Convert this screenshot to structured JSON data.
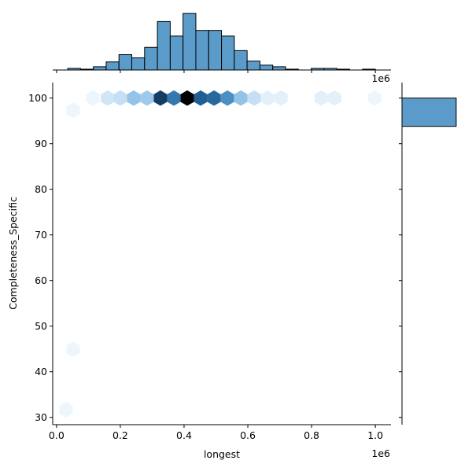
{
  "chart_data": [
    {
      "type": "hexbin",
      "xlabel": "longest",
      "ylabel": "Completeness_Specific",
      "x_offset_text": "1e6",
      "xlim": [
        -0.012,
        1.049
      ],
      "ylim": [
        28.4,
        103.4
      ],
      "xticks": [
        {
          "value": 0.0,
          "label": "0.0"
        },
        {
          "value": 0.2,
          "label": "0.2"
        },
        {
          "value": 0.4,
          "label": "0.4"
        },
        {
          "value": 0.6,
          "label": "0.6"
        },
        {
          "value": 0.8,
          "label": "0.8"
        },
        {
          "value": 1.0,
          "label": "1.0"
        }
      ],
      "yticks": [
        30,
        40,
        50,
        60,
        70,
        80,
        90,
        100
      ],
      "colormap": [
        "#f7fbff",
        "#63a7dd",
        "#1f5f93",
        "#000000"
      ],
      "x": [
        0.114,
        0.16,
        0.2,
        0.242,
        0.284,
        0.326,
        0.368,
        0.41,
        0.452,
        0.494,
        0.536,
        0.578,
        0.62,
        0.662,
        0.704,
        0.83,
        0.872,
        0.998,
        0.052,
        0.052,
        0.03
      ],
      "y": [
        100,
        100,
        100,
        100,
        100,
        100,
        100,
        100,
        100,
        100,
        100,
        100,
        100,
        100,
        100,
        100,
        100,
        100,
        97.3,
        44.9,
        31.7
      ],
      "counts": [
        1,
        4,
        5,
        10,
        9,
        35,
        25,
        45,
        30,
        28,
        20,
        10,
        5,
        2,
        2,
        2,
        2,
        1,
        1,
        1,
        1
      ]
    },
    {
      "type": "histogram",
      "orientation": "vertical",
      "color": "#5a9bc9",
      "x_offset_text": "1e6",
      "xlim": [
        -0.012,
        1.049
      ],
      "ylim": [
        0,
        75
      ],
      "xticks": [
        0.0,
        0.2,
        0.4,
        0.6,
        0.8,
        1.0
      ],
      "bins": [
        0.035,
        0.0752,
        0.1154,
        0.1556,
        0.1958,
        0.236,
        0.2762,
        0.3164,
        0.3566,
        0.3968,
        0.437,
        0.4772,
        0.5174,
        0.5576,
        0.5978,
        0.638,
        0.6782,
        0.7184,
        0.7586,
        0.7988,
        0.839,
        0.8792,
        0.9194,
        0.9596,
        0.9998
      ],
      "values": [
        2,
        1,
        4,
        10,
        19,
        15,
        28,
        60,
        42,
        70,
        49,
        49,
        42,
        24,
        11,
        6,
        4,
        1,
        0,
        2,
        2,
        1,
        0,
        1
      ]
    },
    {
      "type": "histogram",
      "orientation": "horizontal",
      "color": "#5a9bc9",
      "xlim": [
        0,
        540
      ],
      "ylim": [
        28.4,
        103.4
      ],
      "yticks": [
        30,
        40,
        50,
        60,
        70,
        80,
        90,
        100
      ],
      "bins": [
        93.8,
        100.0
      ],
      "values": [
        443
      ]
    }
  ]
}
